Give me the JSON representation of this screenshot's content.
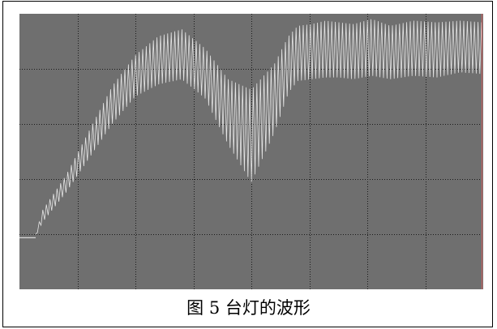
{
  "caption": "图 5 台灯的波形",
  "chart_data": {
    "type": "line",
    "title": "",
    "xlabel": "",
    "ylabel": "",
    "xlim": [
      0,
      10
    ],
    "ylim": [
      0,
      8
    ],
    "grid": true,
    "grid_divisions": {
      "x": 8,
      "y": 5
    },
    "background_color": "#6f6f6f",
    "grid_color": "#1a1a1a",
    "trace_color": "#e6e6e6",
    "trace_style": "dense oscillation band between a lower and upper envelope",
    "baseline_y": 1.5,
    "series": [
      {
        "values": {
          "x": [
            0,
            0.3,
            0.35,
            0.5,
            1.0,
            1.5,
            2.0,
            2.5,
            3.0,
            3.5,
            4.0,
            4.5,
            5.0,
            5.5,
            5.8,
            6.0,
            6.3,
            6.6,
            6.9,
            7.2,
            7.6,
            8.0,
            8.5,
            9.0,
            9.5,
            10.0
          ],
          "upper": [
            1.5,
            1.5,
            1.6,
            2.3,
            3.3,
            4.6,
            5.9,
            6.8,
            7.35,
            7.55,
            7.0,
            6.1,
            5.8,
            6.55,
            7.35,
            7.65,
            7.7,
            7.8,
            7.75,
            7.7,
            7.85,
            7.65,
            7.8,
            7.75,
            7.8,
            7.75
          ],
          "lower": [
            1.5,
            1.5,
            1.55,
            1.95,
            2.8,
            3.8,
            4.8,
            5.6,
            5.95,
            6.1,
            5.55,
            4.2,
            3.1,
            4.55,
            5.7,
            6.05,
            6.1,
            6.15,
            6.15,
            6.1,
            6.2,
            6.1,
            6.2,
            6.15,
            6.3,
            6.25
          ]
        }
      }
    ]
  }
}
